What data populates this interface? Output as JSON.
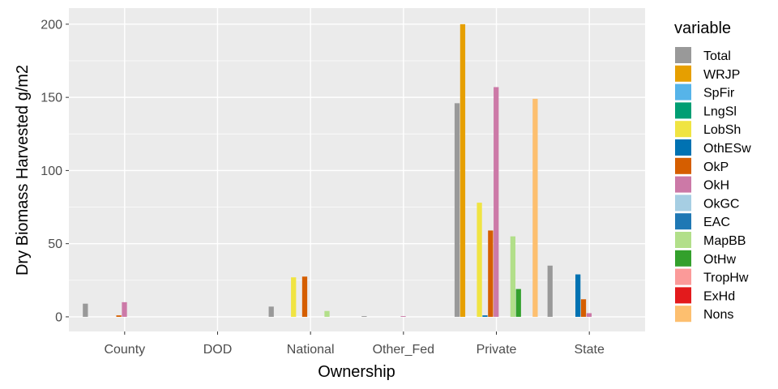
{
  "chart_data": {
    "type": "bar",
    "xlabel": "Ownership",
    "ylabel": "Dry Biomass Harvested g/m2",
    "ylim": [
      -10,
      211
    ],
    "y_ticks": [
      0,
      50,
      100,
      150,
      200
    ],
    "y_tick_labels": [
      "0",
      "50",
      "100",
      "150",
      "200"
    ],
    "grid": true,
    "legend_title": "variable",
    "legend_position": "right",
    "categories": [
      "County",
      "DOD",
      "National",
      "Other_Fed",
      "Private",
      "State"
    ],
    "series": [
      {
        "name": "Total",
        "color": "#999999",
        "values": [
          9,
          0,
          7,
          0.5,
          146,
          35
        ]
      },
      {
        "name": "WRJP",
        "color": "#E69F00",
        "values": [
          0,
          0,
          0,
          0,
          200,
          0
        ]
      },
      {
        "name": "SpFir",
        "color": "#56B4E9",
        "values": [
          0,
          0,
          0,
          0,
          0,
          0
        ]
      },
      {
        "name": "LngSl",
        "color": "#009E73",
        "values": [
          0,
          0,
          0,
          0,
          0,
          0
        ]
      },
      {
        "name": "LobSh",
        "color": "#F0E442",
        "values": [
          0,
          0,
          27,
          0,
          78,
          0
        ]
      },
      {
        "name": "OthESw",
        "color": "#0072B2",
        "values": [
          0,
          0,
          0,
          0,
          1,
          29
        ]
      },
      {
        "name": "OkP",
        "color": "#D55E00",
        "values": [
          1,
          0,
          27.5,
          0,
          59,
          12
        ]
      },
      {
        "name": "OkH",
        "color": "#CC79A7",
        "values": [
          10,
          0,
          0,
          0.5,
          157,
          2.5
        ]
      },
      {
        "name": "OkGC",
        "color": "#A6CEE3",
        "values": [
          0,
          0,
          0,
          0,
          0,
          0
        ]
      },
      {
        "name": "EAC",
        "color": "#1F78B4",
        "values": [
          0,
          0,
          0,
          0,
          0,
          0
        ]
      },
      {
        "name": "MapBB",
        "color": "#B2DF8A",
        "values": [
          0,
          0,
          4,
          0,
          55,
          0
        ]
      },
      {
        "name": "OtHw",
        "color": "#33A02C",
        "values": [
          0,
          0,
          0,
          0,
          19,
          0
        ]
      },
      {
        "name": "TropHw",
        "color": "#FB9A99",
        "values": [
          0,
          0,
          0,
          0,
          0,
          0
        ]
      },
      {
        "name": "ExHd",
        "color": "#E31A1C",
        "values": [
          0,
          0,
          0,
          0,
          0,
          0
        ]
      },
      {
        "name": "Nons",
        "color": "#FDBF6F",
        "values": [
          0,
          0,
          0,
          0,
          149,
          0
        ]
      }
    ]
  }
}
